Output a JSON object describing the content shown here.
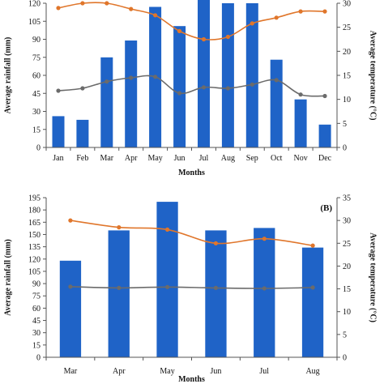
{
  "colors": {
    "bar": "#1f63c7",
    "max_temp": "#e0762b",
    "min_temp": "#6b6b6b",
    "axis": "#555555"
  },
  "chart_data": [
    {
      "type": "bar",
      "title": "",
      "panel_label": "",
      "xlabel": "Months",
      "ylabel": "Average rainfall (mm)",
      "y2label": "Average temperature (°C)",
      "categories": [
        "Jan",
        "Feb",
        "Mar",
        "Apr",
        "May",
        "Jun",
        "Jul",
        "Aug",
        "Sep",
        "Oct",
        "Nov",
        "Dec"
      ],
      "ylim": [
        0,
        120
      ],
      "yticks": [
        0,
        15,
        30,
        45,
        60,
        75,
        90,
        105,
        120
      ],
      "y2lim": [
        0,
        30
      ],
      "y2ticks": [
        0,
        5,
        10,
        15,
        20,
        25,
        30
      ],
      "series": [
        {
          "type": "bar",
          "axis": "left",
          "values": [
            26,
            23,
            75,
            89,
            117,
            101,
            124,
            120,
            120,
            73,
            40,
            19
          ]
        },
        {
          "type": "line",
          "axis": "right",
          "color_key": "max_temp",
          "values": [
            29.0,
            30.0,
            30.0,
            28.8,
            27.5,
            24.2,
            22.5,
            23.0,
            25.8,
            27.0,
            28.3,
            28.3
          ]
        },
        {
          "type": "line",
          "axis": "right",
          "color_key": "min_temp",
          "values": [
            11.8,
            12.3,
            13.7,
            14.5,
            14.7,
            11.3,
            12.5,
            12.3,
            13.1,
            14.0,
            11.0,
            10.7
          ]
        }
      ]
    },
    {
      "type": "bar",
      "title": "",
      "panel_label": "(B)",
      "xlabel": "Months",
      "ylabel": "Average rainfall (mm)",
      "y2label": "Average temperature (°C)",
      "categories": [
        "Mar",
        "Apr",
        "May",
        "Jun",
        "Jul",
        "Aug"
      ],
      "ylim": [
        0,
        195
      ],
      "yticks": [
        0,
        15,
        30,
        45,
        60,
        75,
        90,
        105,
        120,
        135,
        150,
        165,
        180,
        195
      ],
      "y2lim": [
        0,
        35
      ],
      "y2ticks": [
        0,
        5,
        10,
        15,
        20,
        25,
        30,
        35
      ],
      "series": [
        {
          "type": "bar",
          "axis": "left",
          "values": [
            118,
            155,
            190,
            155,
            158,
            134
          ]
        },
        {
          "type": "line",
          "axis": "right",
          "color_key": "max_temp",
          "values": [
            30.0,
            28.5,
            28.0,
            25.0,
            26.0,
            24.5
          ]
        },
        {
          "type": "line",
          "axis": "right",
          "color_key": "min_temp",
          "values": [
            15.5,
            15.2,
            15.4,
            15.2,
            15.1,
            15.3
          ]
        }
      ]
    }
  ]
}
